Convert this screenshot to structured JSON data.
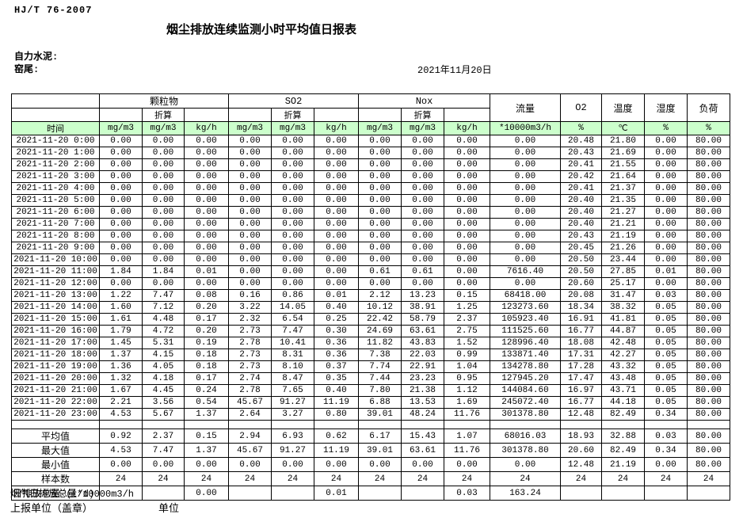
{
  "header": {
    "doc_code": "HJ/T  76-2007",
    "title": "烟尘排放连续监测小时平均值日报表",
    "company": "自力水泥:",
    "station": "窑尾:",
    "date": "2021年11月20日"
  },
  "table": {
    "time_label": "时间",
    "converted_label": "折算",
    "groups": {
      "pm": "颗粒物",
      "so2": "SO2",
      "nox": "Nox",
      "flow": "流量",
      "o2": "O2",
      "temp": "温度",
      "humidity": "湿度",
      "load": "负荷"
    },
    "units": [
      "mg/m3",
      "mg/m3",
      "kg/h",
      "mg/m3",
      "mg/m3",
      "kg/h",
      "mg/m3",
      "mg/m3",
      "kg/h",
      "*10000m3/h",
      "%",
      "℃",
      "%",
      "%"
    ],
    "rows": [
      {
        "time": "2021-11-20 0:00",
        "values": [
          "0.00",
          "0.00",
          "0.00",
          "0.00",
          "0.00",
          "0.00",
          "0.00",
          "0.00",
          "0.00",
          "0.00",
          "20.48",
          "21.80",
          "0.00",
          "80.00"
        ]
      },
      {
        "time": "2021-11-20 1:00",
        "values": [
          "0.00",
          "0.00",
          "0.00",
          "0.00",
          "0.00",
          "0.00",
          "0.00",
          "0.00",
          "0.00",
          "0.00",
          "20.43",
          "21.69",
          "0.00",
          "80.00"
        ]
      },
      {
        "time": "2021-11-20 2:00",
        "values": [
          "0.00",
          "0.00",
          "0.00",
          "0.00",
          "0.00",
          "0.00",
          "0.00",
          "0.00",
          "0.00",
          "0.00",
          "20.41",
          "21.55",
          "0.00",
          "80.00"
        ]
      },
      {
        "time": "2021-11-20 3:00",
        "values": [
          "0.00",
          "0.00",
          "0.00",
          "0.00",
          "0.00",
          "0.00",
          "0.00",
          "0.00",
          "0.00",
          "0.00",
          "20.42",
          "21.64",
          "0.00",
          "80.00"
        ]
      },
      {
        "time": "2021-11-20 4:00",
        "values": [
          "0.00",
          "0.00",
          "0.00",
          "0.00",
          "0.00",
          "0.00",
          "0.00",
          "0.00",
          "0.00",
          "0.00",
          "20.41",
          "21.37",
          "0.00",
          "80.00"
        ]
      },
      {
        "time": "2021-11-20 5:00",
        "values": [
          "0.00",
          "0.00",
          "0.00",
          "0.00",
          "0.00",
          "0.00",
          "0.00",
          "0.00",
          "0.00",
          "0.00",
          "20.40",
          "21.35",
          "0.00",
          "80.00"
        ]
      },
      {
        "time": "2021-11-20 6:00",
        "values": [
          "0.00",
          "0.00",
          "0.00",
          "0.00",
          "0.00",
          "0.00",
          "0.00",
          "0.00",
          "0.00",
          "0.00",
          "20.40",
          "21.27",
          "0.00",
          "80.00"
        ]
      },
      {
        "time": "2021-11-20 7:00",
        "values": [
          "0.00",
          "0.00",
          "0.00",
          "0.00",
          "0.00",
          "0.00",
          "0.00",
          "0.00",
          "0.00",
          "0.00",
          "20.40",
          "21.21",
          "0.00",
          "80.00"
        ]
      },
      {
        "time": "2021-11-20 8:00",
        "values": [
          "0.00",
          "0.00",
          "0.00",
          "0.00",
          "0.00",
          "0.00",
          "0.00",
          "0.00",
          "0.00",
          "0.00",
          "20.43",
          "21.19",
          "0.00",
          "80.00"
        ]
      },
      {
        "time": "2021-11-20 9:00",
        "values": [
          "0.00",
          "0.00",
          "0.00",
          "0.00",
          "0.00",
          "0.00",
          "0.00",
          "0.00",
          "0.00",
          "0.00",
          "20.45",
          "21.26",
          "0.00",
          "80.00"
        ]
      },
      {
        "time": "2021-11-20 10:00",
        "values": [
          "0.00",
          "0.00",
          "0.00",
          "0.00",
          "0.00",
          "0.00",
          "0.00",
          "0.00",
          "0.00",
          "0.00",
          "20.50",
          "23.44",
          "0.00",
          "80.00"
        ]
      },
      {
        "time": "2021-11-20 11:00",
        "values": [
          "1.84",
          "1.84",
          "0.01",
          "0.00",
          "0.00",
          "0.00",
          "0.61",
          "0.61",
          "0.00",
          "7616.40",
          "20.50",
          "27.85",
          "0.01",
          "80.00"
        ]
      },
      {
        "time": "2021-11-20 12:00",
        "values": [
          "0.00",
          "0.00",
          "0.00",
          "0.00",
          "0.00",
          "0.00",
          "0.00",
          "0.00",
          "0.00",
          "0.00",
          "20.60",
          "25.17",
          "0.00",
          "80.00"
        ]
      },
      {
        "time": "2021-11-20 13:00",
        "values": [
          "1.22",
          "7.47",
          "0.08",
          "0.16",
          "0.86",
          "0.01",
          "2.12",
          "13.23",
          "0.15",
          "68418.00",
          "20.08",
          "31.47",
          "0.03",
          "80.00"
        ]
      },
      {
        "time": "2021-11-20 14:00",
        "values": [
          "1.60",
          "7.12",
          "0.20",
          "3.22",
          "14.05",
          "0.40",
          "10.12",
          "38.91",
          "1.25",
          "123273.60",
          "18.34",
          "38.32",
          "0.05",
          "80.00"
        ]
      },
      {
        "time": "2021-11-20 15:00",
        "values": [
          "1.61",
          "4.48",
          "0.17",
          "2.32",
          "6.54",
          "0.25",
          "22.42",
          "58.79",
          "2.37",
          "105923.40",
          "16.91",
          "41.81",
          "0.05",
          "80.00"
        ]
      },
      {
        "time": "2021-11-20 16:00",
        "values": [
          "1.79",
          "4.72",
          "0.20",
          "2.73",
          "7.47",
          "0.30",
          "24.69",
          "63.61",
          "2.75",
          "111525.60",
          "16.77",
          "44.87",
          "0.05",
          "80.00"
        ]
      },
      {
        "time": "2021-11-20 17:00",
        "values": [
          "1.45",
          "5.31",
          "0.19",
          "2.78",
          "10.41",
          "0.36",
          "11.82",
          "43.83",
          "1.52",
          "128996.40",
          "18.08",
          "42.48",
          "0.05",
          "80.00"
        ]
      },
      {
        "time": "2021-11-20 18:00",
        "values": [
          "1.37",
          "4.15",
          "0.18",
          "2.73",
          "8.31",
          "0.36",
          "7.38",
          "22.03",
          "0.99",
          "133871.40",
          "17.31",
          "42.27",
          "0.05",
          "80.00"
        ]
      },
      {
        "time": "2021-11-20 19:00",
        "values": [
          "1.36",
          "4.05",
          "0.18",
          "2.73",
          "8.10",
          "0.37",
          "7.74",
          "22.91",
          "1.04",
          "134278.80",
          "17.28",
          "43.32",
          "0.05",
          "80.00"
        ]
      },
      {
        "time": "2021-11-20 20:00",
        "values": [
          "1.32",
          "4.18",
          "0.17",
          "2.74",
          "8.47",
          "0.35",
          "7.44",
          "23.23",
          "0.95",
          "127945.20",
          "17.47",
          "43.48",
          "0.05",
          "80.00"
        ]
      },
      {
        "time": "2021-11-20 21:00",
        "values": [
          "1.67",
          "4.45",
          "0.24",
          "2.78",
          "7.65",
          "0.40",
          "7.80",
          "21.38",
          "1.12",
          "144084.60",
          "16.97",
          "43.71",
          "0.05",
          "80.00"
        ]
      },
      {
        "time": "2021-11-20 22:00",
        "values": [
          "2.21",
          "3.56",
          "0.54",
          "45.67",
          "91.27",
          "11.19",
          "6.88",
          "13.53",
          "1.69",
          "245072.40",
          "16.77",
          "44.18",
          "0.05",
          "80.00"
        ]
      },
      {
        "time": "2021-11-20 23:00",
        "values": [
          "4.53",
          "5.67",
          "1.37",
          "2.64",
          "3.27",
          "0.80",
          "39.01",
          "48.24",
          "11.76",
          "301378.80",
          "12.48",
          "82.49",
          "0.34",
          "80.00"
        ]
      }
    ],
    "summary": [
      {
        "label": "平均值",
        "values": [
          "0.92",
          "2.37",
          "0.15",
          "2.94",
          "6.93",
          "0.62",
          "6.17",
          "15.43",
          "1.07",
          "68016.03",
          "18.93",
          "32.88",
          "0.03",
          "80.00"
        ]
      },
      {
        "label": "最大值",
        "values": [
          "4.53",
          "7.47",
          "1.37",
          "45.67",
          "91.27",
          "11.19",
          "39.01",
          "63.61",
          "11.76",
          "301378.80",
          "20.60",
          "82.49",
          "0.34",
          "80.00"
        ]
      },
      {
        "label": "最小值",
        "values": [
          "0.00",
          "0.00",
          "0.00",
          "0.00",
          "0.00",
          "0.00",
          "0.00",
          "0.00",
          "0.00",
          "0.00",
          "12.48",
          "21.19",
          "0.00",
          "80.00"
        ]
      },
      {
        "label": "样本数",
        "values": [
          "24",
          "24",
          "24",
          "24",
          "24",
          "24",
          "24",
          "24",
          "24",
          "24",
          "24",
          "24",
          "24",
          "24"
        ]
      },
      {
        "label": "日排放总量 (t/d)",
        "values": [
          "",
          "",
          "0.00",
          "",
          "",
          "0.01",
          "",
          "",
          "0.03",
          "163.24",
          "",
          "",
          "",
          ""
        ]
      }
    ]
  },
  "footer": {
    "gas_total_line": "烟气日排放总量*10000m3/h",
    "report_unit_label": "上报单位（盖章）",
    "unit_label": "单位"
  }
}
